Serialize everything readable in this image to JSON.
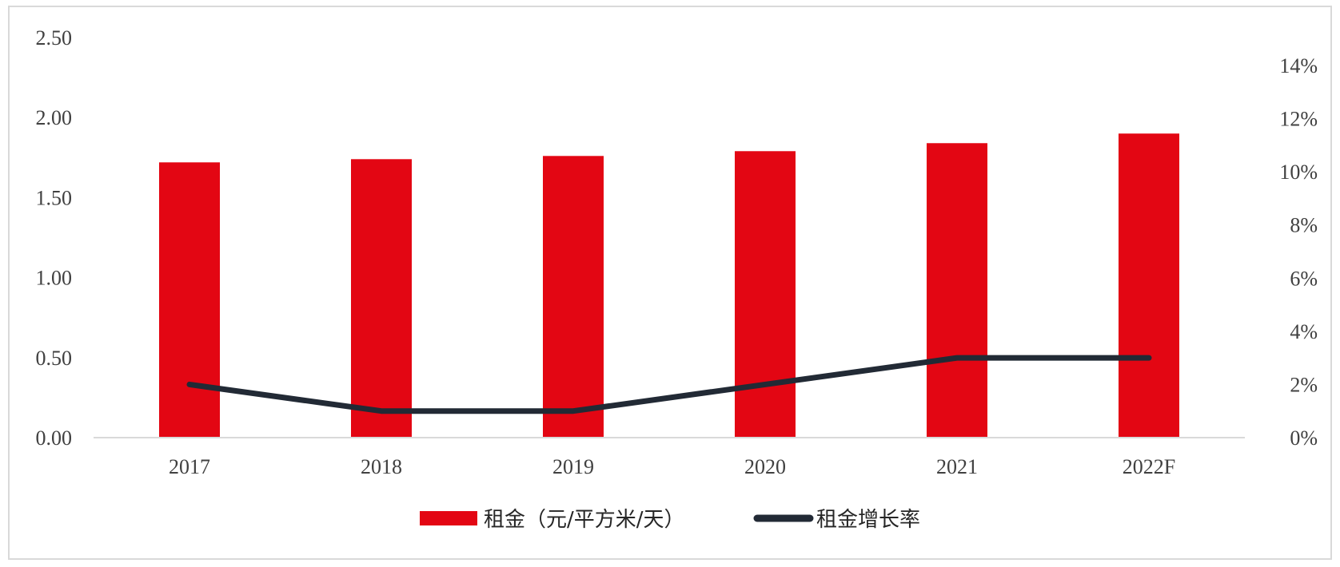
{
  "chart_data": {
    "type": "bar",
    "categories": [
      "2017",
      "2018",
      "2019",
      "2020",
      "2021",
      "2022F"
    ],
    "series": [
      {
        "name": "租金（元/平方米/天）",
        "type": "bar",
        "axis": "left",
        "color": "#e30613",
        "values": [
          1.72,
          1.74,
          1.76,
          1.79,
          1.84,
          1.9
        ]
      },
      {
        "name": "租金增长率",
        "type": "line",
        "axis": "right",
        "color": "#222a35",
        "values": [
          0.02,
          0.01,
          0.01,
          0.02,
          0.03,
          0.03
        ]
      }
    ],
    "y_left": {
      "ylim": [
        0,
        2.5
      ],
      "ticks": [
        "0.00",
        "0.50",
        "1.00",
        "1.50",
        "2.00",
        "2.50"
      ]
    },
    "y_right": {
      "ylim": [
        0,
        0.15
      ],
      "ticks": [
        "0%",
        "2%",
        "4%",
        "6%",
        "8%",
        "10%",
        "12%",
        "14%"
      ]
    },
    "grid": false,
    "legend_position": "bottom",
    "title": "",
    "xlabel": "",
    "ylabel": ""
  }
}
